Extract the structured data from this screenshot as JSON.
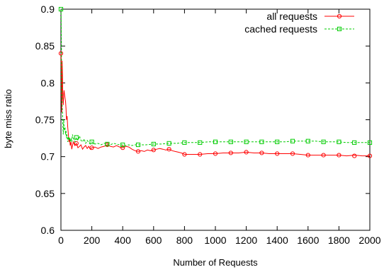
{
  "chart_data": {
    "type": "line",
    "xlabel": "Number of Requests",
    "ylabel": "byte miss ratio",
    "xlim": [
      0,
      2000
    ],
    "ylim": [
      0.6,
      0.9
    ],
    "xticks": [
      "0",
      "200",
      "400",
      "600",
      "800",
      "1000",
      "1200",
      "1400",
      "1600",
      "1800",
      "2000"
    ],
    "yticks": [
      "0.6",
      "0.65",
      "0.7",
      "0.75",
      "0.8",
      "0.85",
      "0.9"
    ],
    "grid": false,
    "legend_position": "top-right",
    "series": [
      {
        "name": "all requests",
        "color": "#ff0000",
        "dash": "solid",
        "marker": "circle",
        "x": [
          1,
          3,
          5,
          8,
          10,
          12,
          15,
          18,
          20,
          23,
          26,
          30,
          33,
          36,
          40,
          44,
          48,
          52,
          56,
          60,
          65,
          70,
          75,
          80,
          90,
          100,
          110,
          120,
          130,
          140,
          150,
          160,
          170,
          180,
          190,
          200,
          220,
          240,
          260,
          280,
          300,
          320,
          340,
          360,
          380,
          400,
          420,
          440,
          460,
          480,
          500,
          520,
          540,
          560,
          580,
          600,
          620,
          640,
          660,
          680,
          700,
          720,
          740,
          760,
          780,
          800,
          850,
          900,
          950,
          1000,
          1050,
          1100,
          1150,
          1200,
          1250,
          1300,
          1350,
          1400,
          1450,
          1500,
          1550,
          1600,
          1650,
          1700,
          1750,
          1800,
          1850,
          1900,
          1950,
          2000
        ],
        "values": [
          0.84,
          0.8,
          0.76,
          0.83,
          0.81,
          0.78,
          0.77,
          0.785,
          0.79,
          0.785,
          0.78,
          0.775,
          0.765,
          0.75,
          0.755,
          0.74,
          0.73,
          0.72,
          0.725,
          0.715,
          0.72,
          0.71,
          0.715,
          0.72,
          0.715,
          0.718,
          0.712,
          0.714,
          0.716,
          0.71,
          0.713,
          0.715,
          0.711,
          0.714,
          0.71,
          0.712,
          0.713,
          0.711,
          0.713,
          0.714,
          0.716,
          0.714,
          0.713,
          0.715,
          0.713,
          0.712,
          0.714,
          0.713,
          0.71,
          0.708,
          0.707,
          0.708,
          0.707,
          0.709,
          0.708,
          0.709,
          0.71,
          0.711,
          0.71,
          0.709,
          0.71,
          0.708,
          0.707,
          0.706,
          0.705,
          0.703,
          0.703,
          0.703,
          0.704,
          0.704,
          0.705,
          0.705,
          0.705,
          0.706,
          0.705,
          0.705,
          0.704,
          0.704,
          0.704,
          0.704,
          0.703,
          0.702,
          0.702,
          0.702,
          0.702,
          0.702,
          0.701,
          0.702,
          0.701,
          0.701
        ],
        "marker_x": [
          0,
          100,
          200,
          300,
          400,
          500,
          600,
          700,
          800,
          900,
          1000,
          1100,
          1200,
          1300,
          1400,
          1500,
          1600,
          1700,
          1800,
          1900,
          2000
        ],
        "marker_values": [
          0.84,
          0.718,
          0.712,
          0.716,
          0.712,
          0.707,
          0.709,
          0.71,
          0.703,
          0.703,
          0.704,
          0.705,
          0.706,
          0.705,
          0.704,
          0.704,
          0.702,
          0.702,
          0.702,
          0.701,
          0.701
        ]
      },
      {
        "name": "cached requests",
        "color": "#00cc00",
        "dash": "dashed",
        "marker": "square",
        "x": [
          1,
          3,
          5,
          8,
          10,
          12,
          15,
          18,
          20,
          23,
          26,
          30,
          33,
          36,
          40,
          44,
          48,
          52,
          56,
          60,
          65,
          70,
          75,
          80,
          90,
          100,
          110,
          120,
          130,
          140,
          150,
          160,
          170,
          180,
          190,
          200,
          220,
          240,
          260,
          280,
          300,
          320,
          340,
          360,
          380,
          400,
          420,
          440,
          460,
          480,
          500,
          550,
          600,
          650,
          700,
          750,
          800,
          850,
          900,
          950,
          1000,
          1050,
          1100,
          1150,
          1200,
          1250,
          1300,
          1350,
          1400,
          1450,
          1500,
          1550,
          1600,
          1650,
          1700,
          1750,
          1800,
          1850,
          1900,
          1950,
          2000
        ],
        "values": [
          0.9,
          0.85,
          0.79,
          0.77,
          0.76,
          0.745,
          0.73,
          0.75,
          0.74,
          0.735,
          0.74,
          0.73,
          0.735,
          0.725,
          0.73,
          0.72,
          0.727,
          0.722,
          0.726,
          0.72,
          0.725,
          0.72,
          0.73,
          0.725,
          0.72,
          0.726,
          0.722,
          0.728,
          0.722,
          0.72,
          0.724,
          0.718,
          0.722,
          0.719,
          0.717,
          0.72,
          0.717,
          0.718,
          0.716,
          0.718,
          0.717,
          0.716,
          0.718,
          0.717,
          0.716,
          0.716,
          0.715,
          0.716,
          0.715,
          0.716,
          0.716,
          0.716,
          0.717,
          0.717,
          0.718,
          0.718,
          0.719,
          0.719,
          0.719,
          0.72,
          0.72,
          0.72,
          0.72,
          0.72,
          0.72,
          0.72,
          0.72,
          0.72,
          0.72,
          0.72,
          0.721,
          0.721,
          0.721,
          0.721,
          0.72,
          0.72,
          0.72,
          0.719,
          0.719,
          0.719,
          0.719
        ],
        "marker_x": [
          0,
          100,
          200,
          300,
          400,
          500,
          600,
          700,
          800,
          900,
          1000,
          1100,
          1200,
          1300,
          1400,
          1500,
          1600,
          1700,
          1800,
          1900,
          2000
        ],
        "marker_values": [
          0.9,
          0.726,
          0.72,
          0.717,
          0.716,
          0.716,
          0.717,
          0.718,
          0.719,
          0.719,
          0.72,
          0.72,
          0.72,
          0.72,
          0.72,
          0.721,
          0.721,
          0.72,
          0.72,
          0.719,
          0.719
        ]
      }
    ]
  }
}
